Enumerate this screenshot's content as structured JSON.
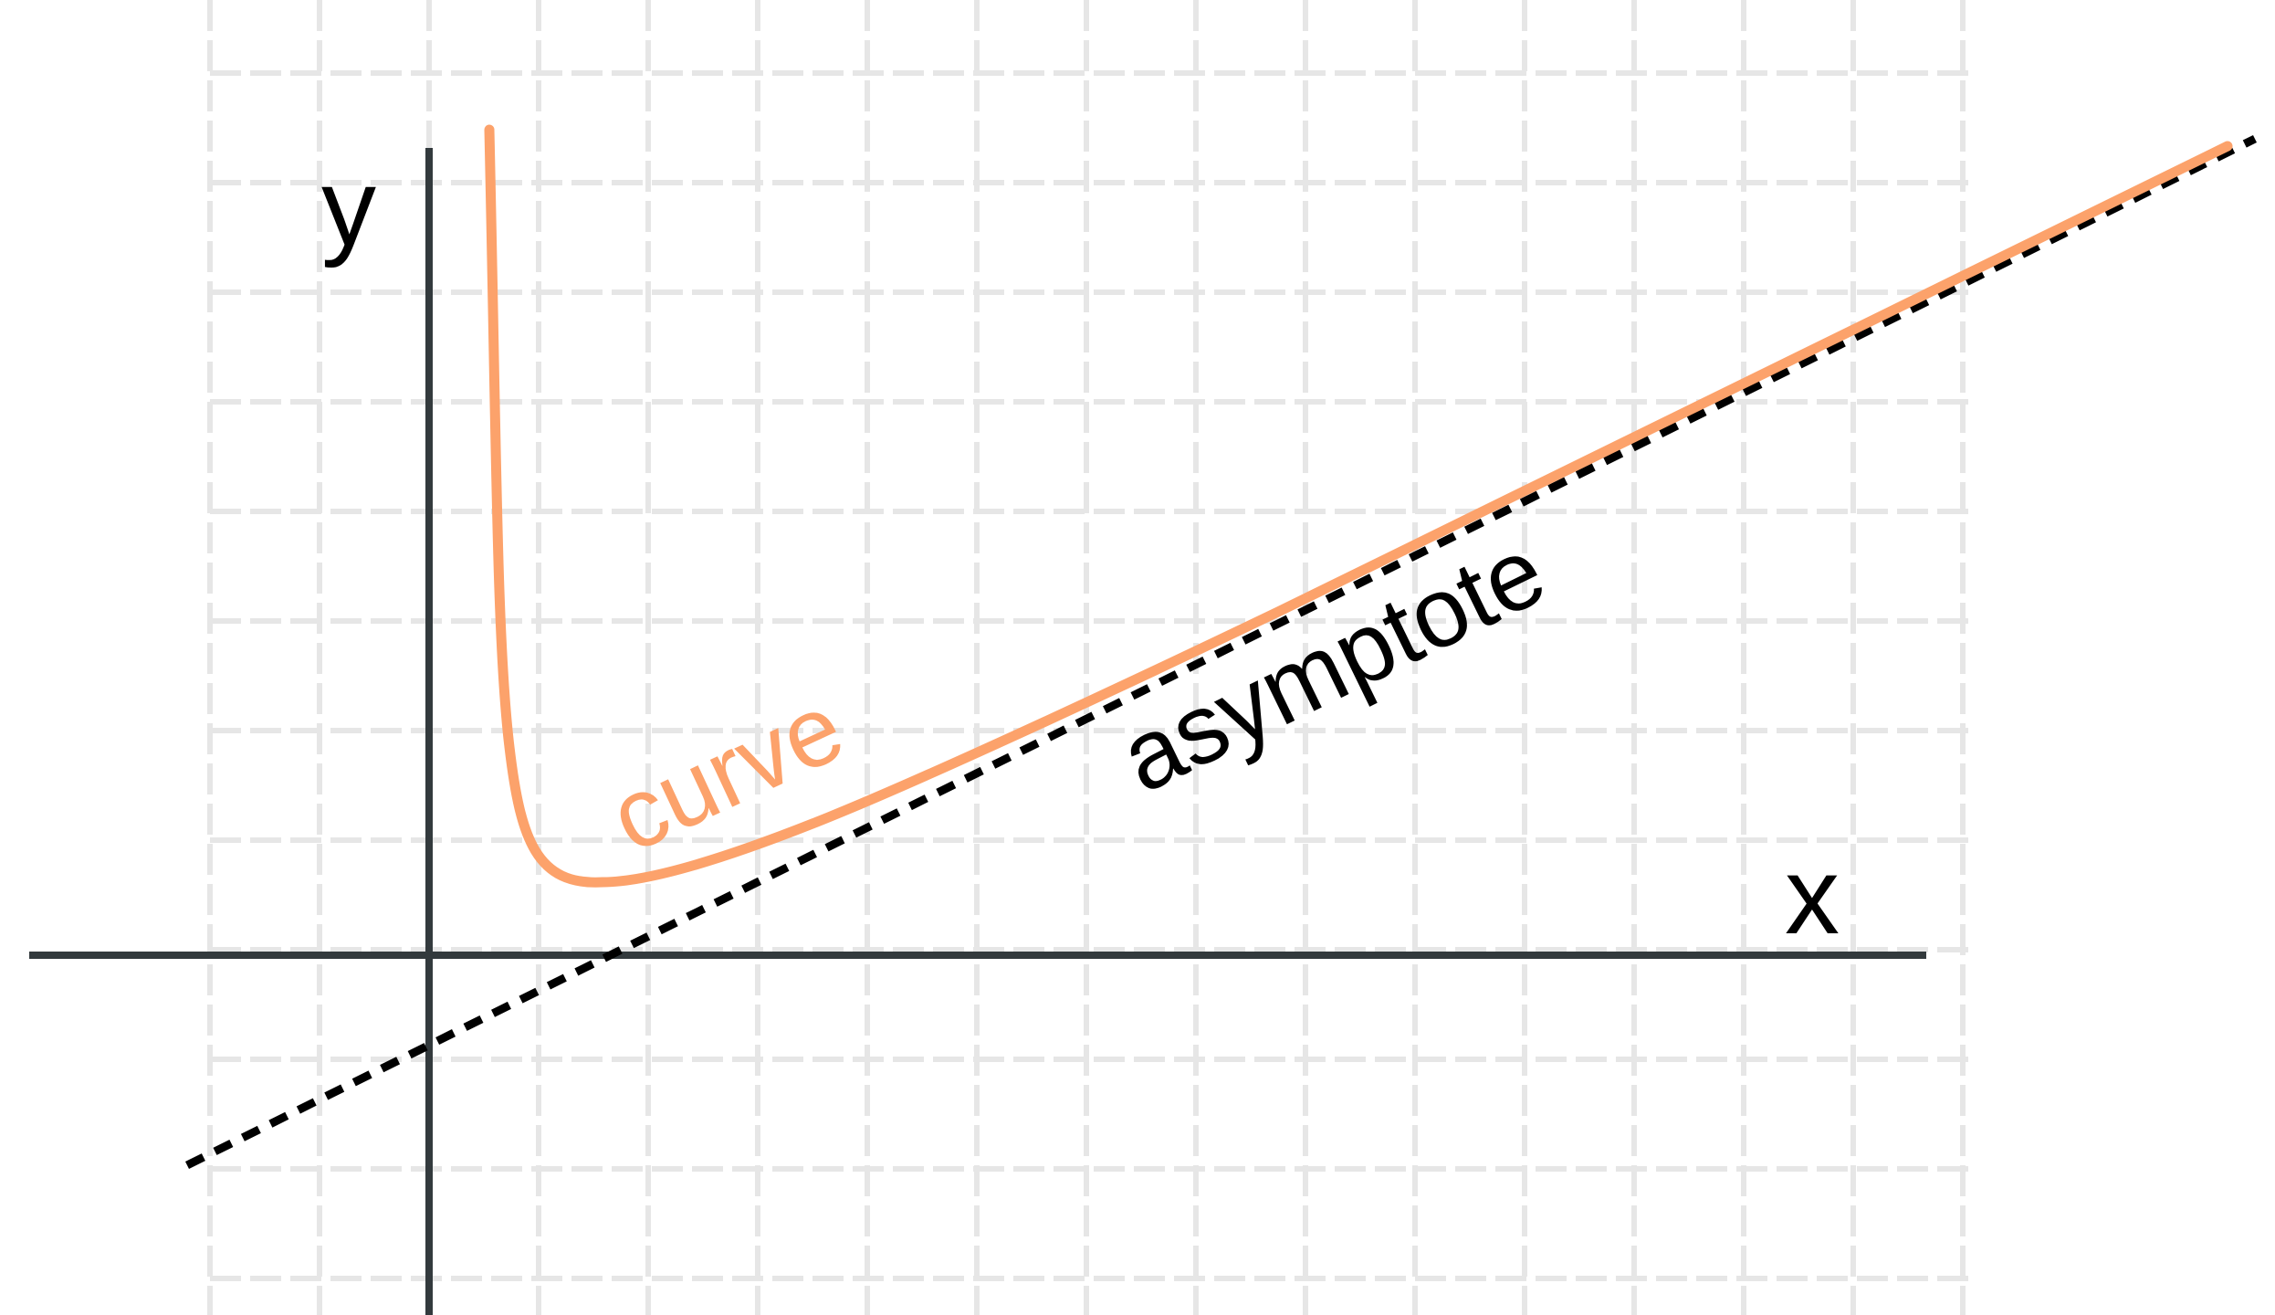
{
  "diagram": {
    "labels": {
      "y_axis": "y",
      "x_axis": "x",
      "curve": "curve",
      "asymptote": "asymptote"
    },
    "colors": {
      "curve": "#FCA26B",
      "asymptote": "#000000",
      "axes": "#333A3D",
      "grid": "#E6E6E6",
      "background": "#FFFFFF"
    },
    "line_styles": {
      "curve": "solid",
      "asymptote": "dotted"
    }
  }
}
